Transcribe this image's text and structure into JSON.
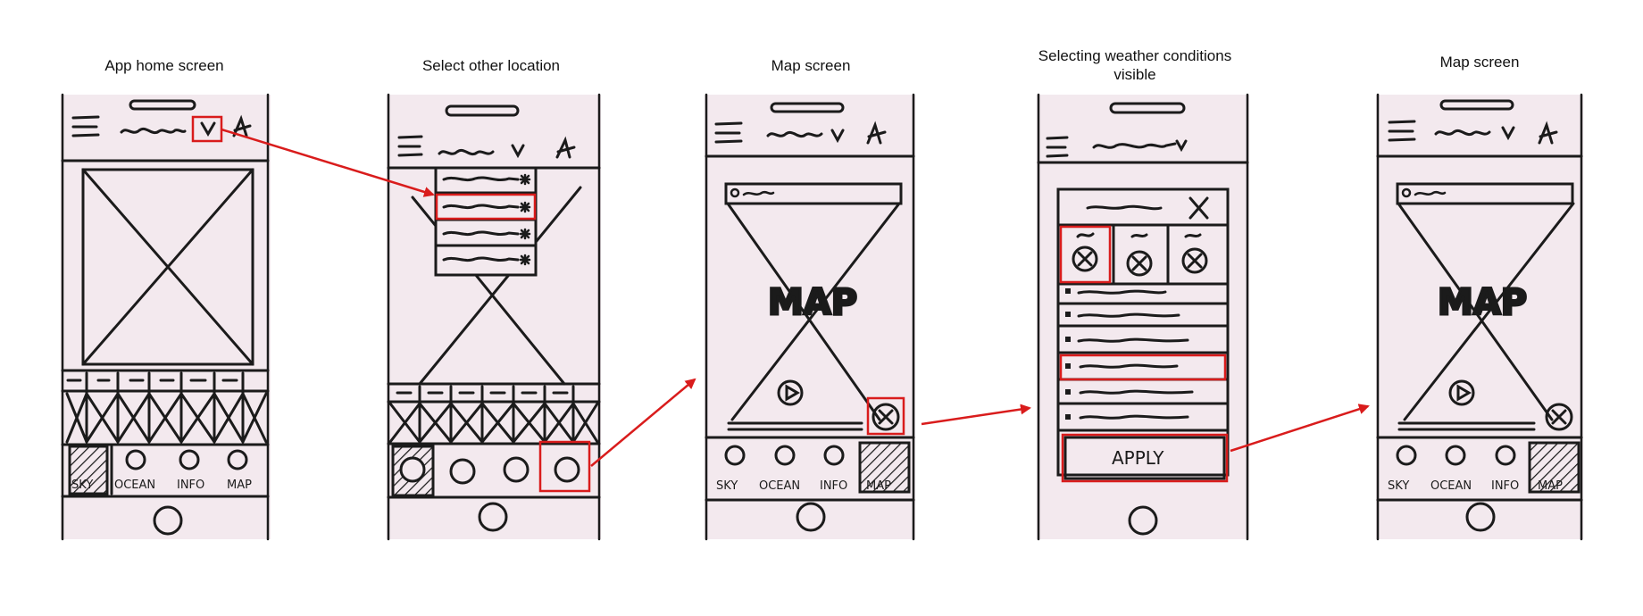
{
  "captions": [
    "App home screen",
    "Select other location",
    "Map screen",
    "Selecting weather conditions visible",
    "Map screen"
  ],
  "tabs": [
    "SKY",
    "OCEAN",
    "INFO",
    "MAP"
  ],
  "map_word": "MAP",
  "apply_label": "APPLY",
  "colors": {
    "paper": "#f3e9ee",
    "ink": "#1b1b1b",
    "highlight": "#d91c1c"
  },
  "icons": [
    "hamburger-menu-icon",
    "chevron-down-icon",
    "user-icon",
    "play-icon",
    "weather-toggle-icon",
    "home-button-icon",
    "star-icon"
  ]
}
